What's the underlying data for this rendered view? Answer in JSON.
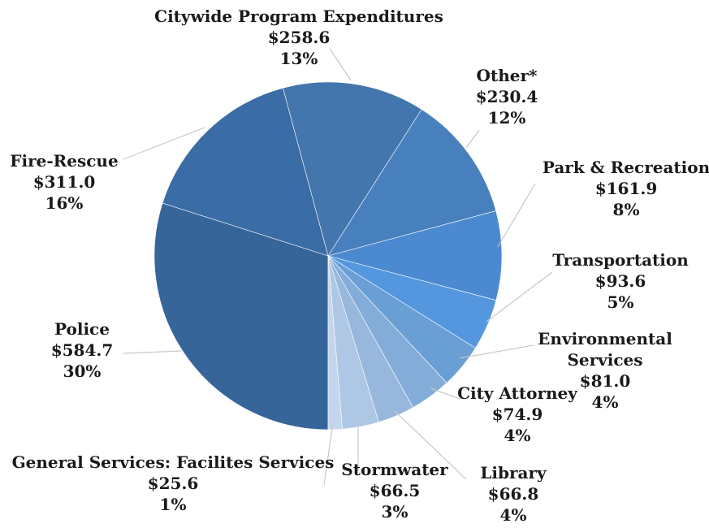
{
  "chart_data": {
    "type": "pie",
    "title": "",
    "slices": [
      {
        "name": "Police",
        "value": "$584.7",
        "amount": 584.7,
        "percent": "30%",
        "color": "#36659a"
      },
      {
        "name": "Fire-Rescue",
        "value": "$311.0",
        "amount": 311.0,
        "percent": "16%",
        "color": "#3a6ca5"
      },
      {
        "name": "Citywide Program Expenditures",
        "value": "$258.6",
        "amount": 258.6,
        "percent": "13%",
        "color": "#4376ad"
      },
      {
        "name": "Other*",
        "value": "$230.4",
        "amount": 230.4,
        "percent": "12%",
        "color": "#487fbd"
      },
      {
        "name": "Park & Recreation",
        "value": "$161.9",
        "amount": 161.9,
        "percent": "8%",
        "color": "#4b8ad0"
      },
      {
        "name": "Transportation",
        "value": "$93.6",
        "amount": 93.6,
        "percent": "5%",
        "color": "#5497df"
      },
      {
        "name": "Environmental Services",
        "value": "$81.0",
        "amount": 81.0,
        "percent": "4%",
        "color": "#6a9fd6"
      },
      {
        "name": "City Attorney",
        "value": "$74.9",
        "amount": 74.9,
        "percent": "4%",
        "color": "#83acd9"
      },
      {
        "name": "Library",
        "value": "$66.8",
        "amount": 66.8,
        "percent": "4%",
        "color": "#97b8dc"
      },
      {
        "name": "Stormwater",
        "value": "$66.5",
        "amount": 66.5,
        "percent": "3%",
        "color": "#aec7e4"
      },
      {
        "name": "General Services: Facilites Services",
        "value": "$25.6",
        "amount": 25.6,
        "percent": "1%",
        "color": "#c4d6ec"
      }
    ]
  }
}
